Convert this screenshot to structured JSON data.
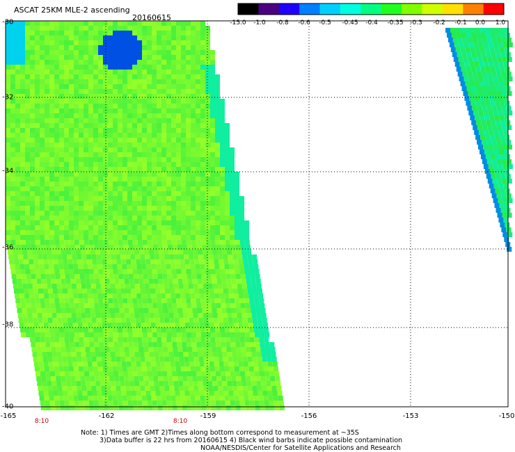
{
  "header": {
    "title": "ASCAT 25KM MLE-2 ascending",
    "date": "20160615"
  },
  "colorbar": {
    "labels": [
      "-15.0",
      "-1.0",
      "-0.8",
      "-0.6",
      "-0.5",
      "-0.45",
      "-0.4",
      "-0.35",
      "-0.3",
      "-0.2",
      "-0.1",
      "0.0",
      "1.0"
    ],
    "colors": [
      "#000000",
      "#4a0080",
      "#2000ff",
      "#0080ff",
      "#00d0ff",
      "#00ffe0",
      "#00ff80",
      "#20ff20",
      "#80ff00",
      "#d0ff00",
      "#ffe000",
      "#ff8000",
      "#ff0000"
    ]
  },
  "map": {
    "lat_ticks": [
      "-30",
      "-32",
      "-34",
      "-36",
      "-38",
      "-40"
    ],
    "lon_ticks": [
      "-165",
      "-162",
      "-159",
      "-156",
      "-153",
      "-150"
    ],
    "time_labels": [
      "8:10",
      "8:10"
    ]
  },
  "notes": [
    "Note: 1) Times are GMT 2)Times along bottom correspond to measurement at ~35S",
    "3)Data buffer is 22 hrs from 20160615 4) Black wind barbs indicate possible contamination",
    "NOAA/NESDIS/Center for Satellite Applications and Research"
  ]
}
